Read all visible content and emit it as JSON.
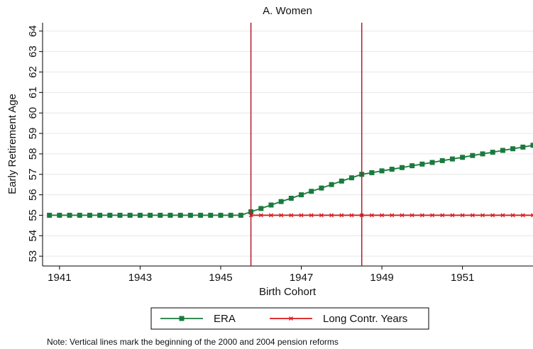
{
  "chart_data": {
    "type": "line",
    "title": "A. Women",
    "xlabel": "Birth Cohort",
    "ylabel": "Early Retirement Age",
    "note": "Note: Vertical lines mark the beginning of the 2000 and 2004 pension reforms",
    "x": [
      1940.75,
      1941,
      1941.25,
      1941.5,
      1941.75,
      1942,
      1942.25,
      1942.5,
      1942.75,
      1943,
      1943.25,
      1943.5,
      1943.75,
      1944,
      1944.25,
      1944.5,
      1944.75,
      1945,
      1945.25,
      1945.5,
      1945.75,
      1946,
      1946.25,
      1946.5,
      1946.75,
      1947,
      1947.25,
      1947.5,
      1947.75,
      1948,
      1948.25,
      1948.5,
      1948.75,
      1949,
      1949.25,
      1949.5,
      1949.75,
      1950,
      1950.25,
      1950.5,
      1950.75,
      1951,
      1951.25,
      1951.5,
      1951.75,
      1952,
      1952.25,
      1952.5,
      1952.75
    ],
    "series": [
      {
        "name": "ERA",
        "color": "#1a7a3e",
        "marker": "square",
        "values": [
          55,
          55,
          55,
          55,
          55,
          55,
          55,
          55,
          55,
          55,
          55,
          55,
          55,
          55,
          55,
          55,
          55,
          55,
          55,
          55,
          55.17,
          55.33,
          55.5,
          55.67,
          55.83,
          56,
          56.17,
          56.33,
          56.5,
          56.67,
          56.83,
          57,
          57.08,
          57.17,
          57.25,
          57.33,
          57.42,
          57.5,
          57.58,
          57.67,
          57.75,
          57.83,
          57.92,
          58,
          58.08,
          58.17,
          58.25,
          58.33,
          58.42
        ]
      },
      {
        "name": "Long Contr. Years",
        "color": "#d7191c",
        "marker": "x",
        "values": [
          null,
          null,
          null,
          null,
          null,
          null,
          null,
          null,
          null,
          null,
          null,
          null,
          null,
          null,
          null,
          null,
          null,
          null,
          null,
          null,
          55,
          55,
          55,
          55,
          55,
          55,
          55,
          55,
          55,
          55,
          55,
          55,
          55,
          55,
          55,
          55,
          55,
          55,
          55,
          55,
          55,
          55,
          55,
          55,
          55,
          55,
          55,
          55,
          55
        ]
      }
    ],
    "vlines": [
      1945.75,
      1948.5
    ],
    "vline_color": "#b2182b",
    "xlim": [
      1940.58,
      1952.75
    ],
    "xticks": [
      1941,
      1943,
      1945,
      1947,
      1949,
      1951
    ],
    "ylim": [
      52.52,
      64.41
    ],
    "yticks": [
      53,
      54,
      55,
      56,
      57,
      58,
      59,
      60,
      61,
      62,
      63,
      64
    ],
    "grid": true
  }
}
